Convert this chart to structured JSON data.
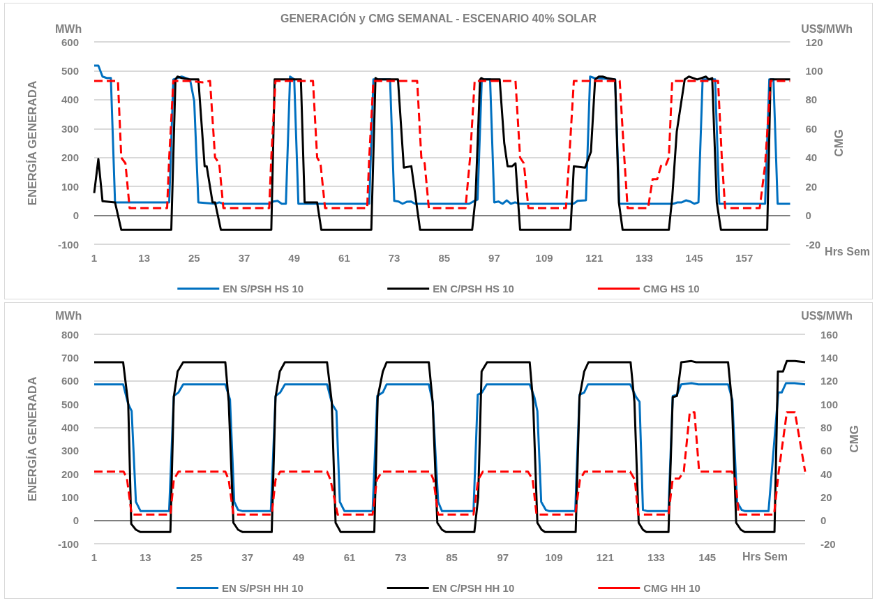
{
  "chart_data": [
    {
      "type": "line",
      "title": "GENERACIÓN y CMG SEMANAL - ESCENARIO 40% SOLAR",
      "ylabel": "ENERGÍA GENERADA",
      "y2label": "CMG",
      "xlabel": "Hrs Sem",
      "annotations": [
        "MWh",
        "US$/MWh"
      ],
      "xlim": [
        1,
        168
      ],
      "xticks": [
        1,
        13,
        25,
        37,
        49,
        61,
        73,
        85,
        97,
        109,
        121,
        133,
        145,
        157
      ],
      "ylim": [
        -100,
        600
      ],
      "yticks": [
        -100,
        0,
        100,
        200,
        300,
        400,
        500,
        600
      ],
      "y2lim": [
        -20,
        120
      ],
      "y2ticks": [
        -20,
        0,
        20,
        40,
        60,
        80,
        100,
        120
      ],
      "grid": "y",
      "legend": "bottom",
      "marker": "none",
      "series": [
        {
          "name": "EN S/PSH HS 10",
          "color": "#0070c0",
          "line_style": "solid",
          "x": [
            1,
            2,
            3,
            4,
            5,
            6,
            19,
            20,
            22,
            24,
            25,
            26,
            30,
            31,
            32,
            43,
            44,
            45,
            46,
            47,
            48,
            49,
            50,
            67,
            68,
            72,
            73,
            74,
            75,
            76,
            77,
            78,
            91,
            92,
            93,
            94,
            96,
            97,
            98,
            99,
            100,
            101,
            102,
            103,
            116,
            117,
            119,
            120,
            121,
            126,
            127,
            140,
            141,
            142,
            143,
            144,
            145,
            146,
            147,
            150,
            151,
            162,
            163,
            164,
            165,
            168
          ],
          "values": [
            518,
            518,
            480,
            475,
            475,
            45,
            45,
            470,
            480,
            470,
            395,
            45,
            40,
            45,
            40,
            40,
            48,
            50,
            40,
            40,
            480,
            470,
            40,
            40,
            470,
            470,
            50,
            48,
            40,
            47,
            48,
            40,
            40,
            48,
            55,
            470,
            470,
            45,
            48,
            40,
            52,
            40,
            45,
            40,
            40,
            50,
            52,
            480,
            475,
            470,
            40,
            40,
            45,
            45,
            52,
            48,
            40,
            45,
            470,
            470,
            40,
            40,
            470,
            470,
            40,
            40
          ]
        },
        {
          "name": "EN C/PSH HS 10",
          "color": "#000000",
          "line_style": "solid",
          "x": [
            1,
            2,
            3,
            6,
            7.5,
            19.5,
            20.5,
            21,
            22,
            24,
            26,
            27.5,
            28,
            29.4,
            30,
            31.4,
            43.5,
            44.3,
            50.6,
            51.5,
            54.5,
            55.5,
            67.5,
            68.5,
            69,
            73.9,
            75.3,
            77.1,
            79.2,
            91.7,
            92.5,
            93.6,
            93.9,
            94.5,
            98.3,
            99.4,
            100.2,
            101.3,
            102.1,
            103.2,
            115.3,
            116.1,
            118.8,
            120.2,
            121.2,
            122.1,
            123,
            124,
            126,
            126.9,
            127.8,
            138.9,
            139.7,
            140.8,
            142.7,
            143.7,
            145.7,
            147.8,
            148.5,
            149.3,
            150.4,
            151.4,
            162.5,
            163.3,
            168
          ],
          "values": [
            77,
            195,
            49,
            45,
            -50,
            -50,
            470,
            480,
            475,
            470,
            470,
            170,
            170,
            45,
            45,
            -50,
            -50,
            470,
            470,
            45,
            45,
            -50,
            -50,
            475,
            470,
            470,
            165,
            170,
            -50,
            -50,
            60,
            470,
            475,
            470,
            470,
            250,
            170,
            170,
            180,
            -50,
            -50,
            170,
            165,
            220,
            470,
            480,
            480,
            475,
            470,
            45,
            -50,
            -50,
            60,
            290,
            470,
            480,
            470,
            480,
            470,
            475,
            45,
            -50,
            -50,
            470,
            470
          ]
        },
        {
          "name": "CMG HS 10",
          "color": "#ff0000",
          "line_style": "dashed",
          "axis": "y2",
          "x": [
            1,
            6.7,
            7.5,
            8.5,
            9.5,
            18.5,
            19,
            20,
            24,
            27,
            28.8,
            30,
            31,
            32,
            43,
            43.5,
            44.5,
            53.5,
            54.5,
            55.3,
            56.4,
            66.5,
            67,
            68,
            78.5,
            79.5,
            80.3,
            81.3,
            90.1,
            91.2,
            92.3,
            102.1,
            103.2,
            104.1,
            105.2,
            114.2,
            115,
            116.1,
            127.1,
            128.2,
            129,
            133.9,
            135,
            136.1,
            137.1,
            138.2,
            138.9,
            139.7,
            150.7,
            151.6,
            152.4,
            160.7,
            162,
            163.3,
            168
          ],
          "values": [
            93,
            93,
            40,
            36,
            5,
            5,
            40,
            93,
            93,
            92,
            93,
            40,
            36,
            5,
            5,
            40,
            93,
            93,
            40,
            36,
            5,
            5,
            40,
            93,
            93,
            40,
            36,
            5,
            5,
            40,
            93,
            93,
            40,
            36,
            5,
            5,
            40,
            93,
            93,
            40,
            5,
            5,
            25,
            25,
            35,
            35,
            40,
            93,
            93,
            40,
            5,
            5,
            35,
            93,
            93
          ]
        }
      ]
    },
    {
      "type": "line",
      "ylabel": "ENERGÍA GENERADA",
      "y2label": "CMG",
      "xlabel": "Hrs Sem",
      "annotations": [
        "MWh",
        "US$/MWh"
      ],
      "xlim": [
        1,
        168
      ],
      "xticks": [
        1,
        13,
        25,
        37,
        49,
        61,
        73,
        85,
        97,
        109,
        121,
        133,
        145
      ],
      "ylim": [
        -100,
        800
      ],
      "yticks": [
        -100,
        0,
        100,
        200,
        300,
        400,
        500,
        600,
        700,
        800
      ],
      "y2lim": [
        -20,
        160
      ],
      "y2ticks": [
        -20,
        0,
        20,
        40,
        60,
        80,
        100,
        120,
        140,
        160
      ],
      "grid": "y",
      "legend": "bottom",
      "marker": "none",
      "series": [
        {
          "name": "EN S/PSH HH 10",
          "color": "#0070c0",
          "line_style": "solid",
          "x": [
            1,
            7.8,
            9,
            9.8,
            10.8,
            11.9,
            18.6,
            19.7,
            20.8,
            21.9,
            31.8,
            32.9,
            33.9,
            34.8,
            35.9,
            42.5,
            43.6,
            44.7,
            45.8,
            55.7,
            56.9,
            57.9,
            58.7,
            59.8,
            66.4,
            67.5,
            68.8,
            69.7,
            79.6,
            80.5,
            81.8,
            82.7,
            90.1,
            91.1,
            92.1,
            93.2,
            103.3,
            104.4,
            105.1,
            106,
            107.1,
            107.9,
            114,
            115,
            116.1,
            117,
            126.9,
            128.3,
            129.1,
            129.9,
            131,
            135.9,
            136.9,
            137.9,
            138.9,
            141.3,
            142.9,
            149.9,
            150.9,
            152,
            153.1,
            153.9,
            159.4,
            161.7,
            162.5,
            163.5,
            165.5,
            168
          ],
          "values": [
            585,
            585,
            500,
            470,
            80,
            40,
            40,
            535,
            550,
            585,
            585,
            520,
            80,
            45,
            40,
            40,
            535,
            550,
            585,
            585,
            500,
            470,
            80,
            40,
            40,
            535,
            550,
            585,
            585,
            510,
            80,
            40,
            40,
            540,
            550,
            585,
            585,
            530,
            470,
            80,
            45,
            40,
            40,
            540,
            550,
            585,
            585,
            530,
            510,
            45,
            40,
            40,
            535,
            540,
            585,
            590,
            585,
            585,
            520,
            80,
            45,
            40,
            40,
            550,
            550,
            590,
            590,
            585
          ]
        },
        {
          "name": "EN C/PSH HH 10",
          "color": "#000000",
          "line_style": "solid",
          "x": [
            1,
            7.8,
            9,
            9.7,
            10.8,
            11.9,
            18.9,
            19.7,
            20.6,
            21.9,
            31.8,
            32.6,
            33.7,
            34.8,
            35.9,
            42.7,
            43.6,
            44.6,
            45.8,
            55.7,
            56.8,
            57.7,
            58.9,
            66.8,
            67.6,
            68.8,
            69.7,
            79.6,
            80.5,
            81.6,
            82.7,
            83.6,
            90.3,
            91.2,
            92,
            93.3,
            103.3,
            104.1,
            105.1,
            106.1,
            106.9,
            114.1,
            115,
            116.1,
            117.1,
            127,
            127.9,
            128.9,
            129.9,
            130.7,
            135.9,
            136.9,
            137.9,
            138.9,
            141.3,
            142.4,
            149.9,
            150.8,
            151.8,
            152.9,
            153.8,
            160.8,
            161.6,
            162.8,
            163.7,
            165.6,
            168
          ],
          "values": [
            680,
            680,
            500,
            -15,
            -40,
            -50,
            -50,
            530,
            640,
            680,
            680,
            510,
            -10,
            -40,
            -50,
            -50,
            530,
            640,
            680,
            680,
            510,
            -10,
            -50,
            -50,
            530,
            640,
            680,
            680,
            510,
            -10,
            -40,
            -50,
            -50,
            100,
            640,
            680,
            680,
            510,
            -10,
            -40,
            -50,
            -50,
            530,
            640,
            680,
            680,
            510,
            -10,
            -40,
            -50,
            -50,
            530,
            535,
            680,
            685,
            680,
            680,
            510,
            -10,
            -40,
            -50,
            -50,
            640,
            640,
            685,
            685,
            680
          ]
        },
        {
          "name": "CMG HH 10",
          "color": "#ff0000",
          "line_style": "dashed",
          "axis": "y2",
          "x": [
            1,
            7.9,
            8.7,
            9.8,
            18.9,
            19.7,
            20.8,
            31.8,
            32.6,
            33.7,
            42.7,
            43.6,
            44.7,
            55.7,
            56.5,
            58.2,
            66.4,
            67.4,
            68.6,
            79.9,
            80.7,
            81.8,
            90.1,
            91.2,
            92.3,
            102.9,
            104,
            104.9,
            114,
            115.1,
            116.2,
            126.9,
            128,
            128.8,
            135.9,
            136.9,
            138.4,
            139.5,
            140.9,
            142,
            143.1,
            150.8,
            151.6,
            152.4,
            160.7,
            161.8,
            163.7,
            165.6,
            168
          ],
          "values": [
            42,
            42,
            36,
            5,
            5,
            35,
            42,
            42,
            35,
            5,
            5,
            35,
            42,
            42,
            35,
            5,
            5,
            35,
            42,
            42,
            35,
            5,
            5,
            35,
            42,
            42,
            35,
            5,
            5,
            35,
            42,
            42,
            35,
            5,
            5,
            36,
            36,
            42,
            93,
            93,
            42,
            42,
            35,
            5,
            5,
            42,
            93,
            93,
            42
          ]
        }
      ]
    }
  ]
}
